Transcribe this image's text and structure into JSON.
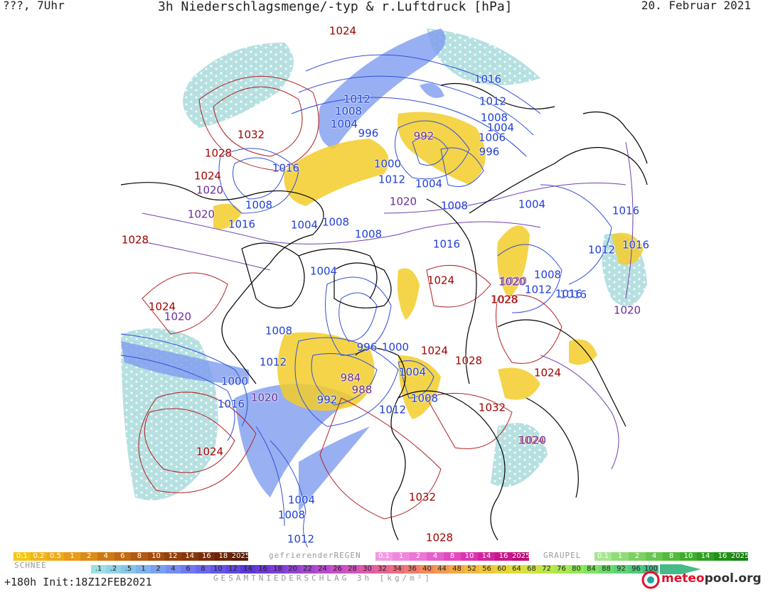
{
  "header": {
    "left": "???, 7Uhr",
    "title": "3h Niederschlagsmenge/-typ & r.Luftdruck [hPa]",
    "date": "20. Februar 2021"
  },
  "isobars": [
    {
      "v": "1024",
      "t": "high"
    },
    {
      "v": "1032",
      "t": "high"
    },
    {
      "v": "1028",
      "t": "high"
    },
    {
      "v": "1024",
      "t": "high"
    },
    {
      "v": "1020",
      "t": "mid"
    },
    {
      "v": "1016",
      "t": "low"
    },
    {
      "v": "1012",
      "t": "low"
    },
    {
      "v": "1008",
      "t": "low"
    },
    {
      "v": "1004",
      "t": "low"
    },
    {
      "v": "996",
      "t": "low"
    },
    {
      "v": "992",
      "t": "mid"
    },
    {
      "v": "1000",
      "t": "low"
    },
    {
      "v": "1012",
      "t": "low"
    },
    {
      "v": "1004",
      "t": "low"
    },
    {
      "v": "1008",
      "t": "low"
    },
    {
      "v": "1020",
      "t": "mid"
    },
    {
      "v": "1016",
      "t": "low"
    },
    {
      "v": "1012",
      "t": "low"
    },
    {
      "v": "1008",
      "t": "low"
    },
    {
      "v": "1004",
      "t": "low"
    },
    {
      "v": "1006",
      "t": "low"
    },
    {
      "v": "996",
      "t": "low"
    },
    {
      "v": "1004",
      "t": "low"
    },
    {
      "v": "1008",
      "t": "low"
    },
    {
      "v": "1016",
      "t": "low"
    },
    {
      "v": "1020",
      "t": "mid"
    },
    {
      "v": "1008",
      "t": "low"
    },
    {
      "v": "1004",
      "t": "low"
    },
    {
      "v": "1008",
      "t": "low"
    },
    {
      "v": "1028",
      "t": "high"
    },
    {
      "v": "1004",
      "t": "low"
    },
    {
      "v": "1016",
      "t": "low"
    },
    {
      "v": "1024",
      "t": "high"
    },
    {
      "v": "1008",
      "t": "low"
    },
    {
      "v": "1020",
      "t": "mid"
    },
    {
      "v": "1012",
      "t": "low"
    },
    {
      "v": "1016",
      "t": "low"
    },
    {
      "v": "1028",
      "t": "high"
    },
    {
      "v": "1024",
      "t": "high"
    },
    {
      "v": "1008",
      "t": "low"
    },
    {
      "v": "996",
      "t": "low"
    },
    {
      "v": "1000",
      "t": "low"
    },
    {
      "v": "1024",
      "t": "high"
    },
    {
      "v": "1028",
      "t": "high"
    },
    {
      "v": "1012",
      "t": "low"
    },
    {
      "v": "1000",
      "t": "low"
    },
    {
      "v": "1016",
      "t": "low"
    },
    {
      "v": "1020",
      "t": "mid"
    },
    {
      "v": "992",
      "t": "low"
    },
    {
      "v": "984",
      "t": "mid"
    },
    {
      "v": "988",
      "t": "mid"
    },
    {
      "v": "1004",
      "t": "low"
    },
    {
      "v": "1012",
      "t": "low"
    },
    {
      "v": "1008",
      "t": "low"
    },
    {
      "v": "1032",
      "t": "high"
    },
    {
      "v": "1024",
      "t": "high"
    },
    {
      "v": "1020",
      "t": "mid"
    },
    {
      "v": "1024",
      "t": "high"
    },
    {
      "v": "1004",
      "t": "low"
    },
    {
      "v": "1008",
      "t": "low"
    },
    {
      "v": "1012",
      "t": "low"
    },
    {
      "v": "1032",
      "t": "high"
    },
    {
      "v": "1028",
      "t": "high"
    },
    {
      "v": "1016",
      "t": "low"
    },
    {
      "v": "1012",
      "t": "low"
    },
    {
      "v": "1016",
      "t": "low"
    },
    {
      "v": "1020",
      "t": "mid"
    },
    {
      "v": "1024",
      "t": "high"
    },
    {
      "v": "1020",
      "t": "mid"
    },
    {
      "v": "1016",
      "t": "low"
    },
    {
      "v": "1020",
      "t": "mid"
    },
    {
      "v": "1028",
      "t": "high"
    }
  ],
  "legend": {
    "snow_title": "SCHNEE",
    "snow": [
      {
        "label": "0.1",
        "color": "#f6c61a"
      },
      {
        "label": "0.2",
        "color": "#f2b61b"
      },
      {
        "label": "0.5",
        "color": "#eeaa1b"
      },
      {
        "label": "1",
        "color": "#e79b18"
      },
      {
        "label": "2",
        "color": "#dc8b16"
      },
      {
        "label": "4",
        "color": "#ce7814"
      },
      {
        "label": "6",
        "color": "#c16812"
      },
      {
        "label": "8",
        "color": "#b25a10"
      },
      {
        "label": "10",
        "color": "#a34c0e"
      },
      {
        "label": "12",
        "color": "#94400c"
      },
      {
        "label": "14",
        "color": "#86360b"
      },
      {
        "label": "16",
        "color": "#782c09"
      },
      {
        "label": "18",
        "color": "#6a2307"
      },
      {
        "label": "2025+",
        "color": "#5a1a05"
      }
    ],
    "fzrain_title": "gefrierenderREGEN",
    "fzrain": [
      {
        "label": "0.1",
        "color": "#f29ae3"
      },
      {
        "label": "1",
        "color": "#ef88dd"
      },
      {
        "label": "2",
        "color": "#ec75d6"
      },
      {
        "label": "4",
        "color": "#e85fcc"
      },
      {
        "label": "8",
        "color": "#e34ac0"
      },
      {
        "label": "10",
        "color": "#dc36b0"
      },
      {
        "label": "14",
        "color": "#d3249d"
      },
      {
        "label": "16",
        "color": "#c9168a"
      },
      {
        "label": "2025+",
        "color": "#be0c78"
      }
    ],
    "graupel_title": "GRAUPEL",
    "graupel": [
      {
        "label": "0.1",
        "color": "#a6e68e"
      },
      {
        "label": "1",
        "color": "#90dc78"
      },
      {
        "label": "2",
        "color": "#7bd162"
      },
      {
        "label": "4",
        "color": "#67c64e"
      },
      {
        "label": "8",
        "color": "#52ba3c"
      },
      {
        "label": "10",
        "color": "#40ad2e"
      },
      {
        "label": "14",
        "color": "#309f22"
      },
      {
        "label": "16",
        "color": "#229118"
      },
      {
        "label": "2025+",
        "color": "#17820f"
      }
    ],
    "total": [
      {
        "label": ".1",
        "color": "#9ee0e2"
      },
      {
        "label": ".2",
        "color": "#8fd4e6"
      },
      {
        "label": ".5",
        "color": "#86c6ea"
      },
      {
        "label": "1",
        "color": "#7fb3ee"
      },
      {
        "label": "2",
        "color": "#7aa0f0"
      },
      {
        "label": "4",
        "color": "#758df2"
      },
      {
        "label": "6",
        "color": "#6f79f1"
      },
      {
        "label": "8",
        "color": "#6a67ee"
      },
      {
        "label": "10",
        "color": "#6556ea"
      },
      {
        "label": "12",
        "color": "#5f46e2"
      },
      {
        "label": "14",
        "color": "#5737d8"
      },
      {
        "label": "16",
        "color": "#6a3ad8"
      },
      {
        "label": "18",
        "color": "#7d3ed6"
      },
      {
        "label": "20",
        "color": "#9042d4"
      },
      {
        "label": "22",
        "color": "#a446d1"
      },
      {
        "label": "24",
        "color": "#b74ace"
      },
      {
        "label": "26",
        "color": "#c94ec9"
      },
      {
        "label": "28",
        "color": "#d553bd"
      },
      {
        "label": "30",
        "color": "#e05aa9"
      },
      {
        "label": "32",
        "color": "#e86393"
      },
      {
        "label": "34",
        "color": "#ee6e7e"
      },
      {
        "label": "36",
        "color": "#f17b6b"
      },
      {
        "label": "40",
        "color": "#f38a5b"
      },
      {
        "label": "44",
        "color": "#f49a4e"
      },
      {
        "label": "48",
        "color": "#f4aa44"
      },
      {
        "label": "52",
        "color": "#f2b93c"
      },
      {
        "label": "56",
        "color": "#eec738"
      },
      {
        "label": "60",
        "color": "#e8d337"
      },
      {
        "label": "64",
        "color": "#dedd3a"
      },
      {
        "label": "68",
        "color": "#cee340"
      },
      {
        "label": "72",
        "color": "#bce746"
      },
      {
        "label": "76",
        "color": "#a8e84d"
      },
      {
        "label": "80",
        "color": "#93e755"
      },
      {
        "label": "84",
        "color": "#7ee35e"
      },
      {
        "label": "88",
        "color": "#6bdc68"
      },
      {
        "label": "92",
        "color": "#5bd373"
      },
      {
        "label": "96",
        "color": "#4fc87e"
      },
      {
        "label": "100",
        "color": "#46bb88"
      }
    ],
    "total_title": "GESAMTNIEDERSCHLAG 3h [kg/m²]"
  },
  "footer": {
    "run": "+180h Init:18Z12FEB2021",
    "logo_a": "meteo",
    "logo_b": "pool.org"
  }
}
